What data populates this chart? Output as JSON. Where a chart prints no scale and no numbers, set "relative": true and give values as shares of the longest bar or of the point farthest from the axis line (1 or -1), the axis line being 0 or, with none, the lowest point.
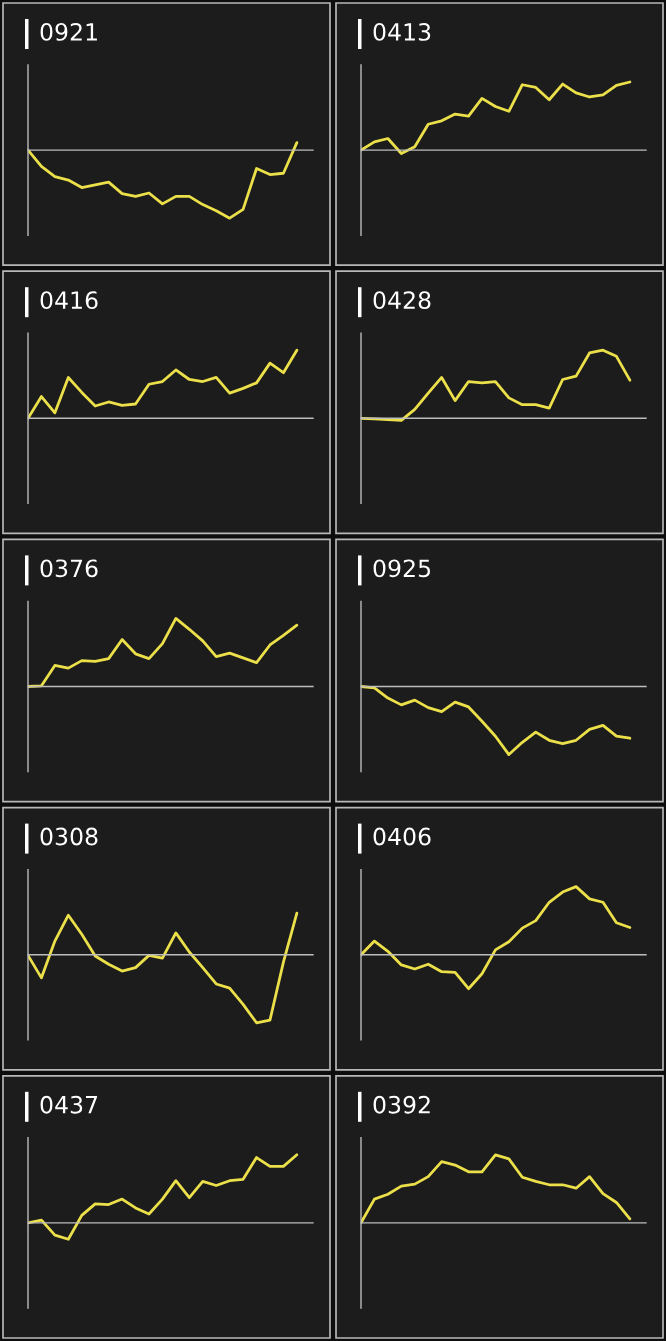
{
  "chart_data": [
    {
      "type": "line",
      "title": "0921",
      "relative": true,
      "categories": [
        null,
        null,
        null,
        null,
        null,
        null,
        null,
        null,
        null,
        null,
        null,
        null,
        null,
        null,
        null,
        null,
        null,
        null,
        null,
        null,
        null
      ],
      "series": [
        {
          "color": "#ece04a",
          "values": [
            0,
            -0.24,
            -0.39,
            -0.44,
            -0.55,
            -0.51,
            -0.47,
            -0.64,
            -0.68,
            -0.63,
            -0.79,
            -0.68,
            -0.68,
            -0.8,
            -0.89,
            -1,
            -0.87,
            -0.27,
            -0.36,
            -0.34,
            0.11
          ]
        }
      ]
    },
    {
      "type": "line",
      "title": "0413",
      "relative": true,
      "categories": [
        null,
        null,
        null,
        null,
        null,
        null,
        null,
        null,
        null,
        null,
        null,
        null,
        null,
        null,
        null,
        null,
        null,
        null,
        null,
        null,
        null
      ],
      "series": [
        {
          "color": "#ece04a",
          "values": [
            0,
            0.12,
            0.17,
            -0.05,
            0.05,
            0.38,
            0.43,
            0.53,
            0.5,
            0.76,
            0.64,
            0.57,
            0.96,
            0.92,
            0.74,
            0.97,
            0.84,
            0.78,
            0.81,
            0.95,
            1
          ]
        }
      ]
    },
    {
      "type": "line",
      "title": "0416",
      "relative": true,
      "categories": [
        null,
        null,
        null,
        null,
        null,
        null,
        null,
        null,
        null,
        null,
        null,
        null,
        null,
        null,
        null,
        null,
        null,
        null,
        null,
        null,
        null
      ],
      "series": [
        {
          "color": "#ece04a",
          "values": [
            0,
            0.32,
            0.08,
            0.6,
            0.38,
            0.18,
            0.24,
            0.19,
            0.21,
            0.5,
            0.54,
            0.71,
            0.57,
            0.54,
            0.6,
            0.37,
            0.44,
            0.52,
            0.81,
            0.67,
            1
          ]
        }
      ]
    },
    {
      "type": "line",
      "title": "0428",
      "relative": true,
      "categories": [
        null,
        null,
        null,
        null,
        null,
        null,
        null,
        null,
        null,
        null,
        null,
        null,
        null,
        null,
        null,
        null,
        null,
        null,
        null,
        null,
        null
      ],
      "series": [
        {
          "color": "#ece04a",
          "values": [
            0,
            -0.01,
            -0.02,
            -0.03,
            0.13,
            0.37,
            0.6,
            0.26,
            0.54,
            0.52,
            0.54,
            0.3,
            0.2,
            0.2,
            0.15,
            0.57,
            0.62,
            0.96,
            1,
            0.91,
            0.56
          ]
        }
      ]
    },
    {
      "type": "line",
      "title": "0376",
      "relative": true,
      "categories": [
        null,
        null,
        null,
        null,
        null,
        null,
        null,
        null,
        null,
        null,
        null,
        null,
        null,
        null,
        null,
        null,
        null,
        null,
        null,
        null,
        null
      ],
      "series": [
        {
          "color": "#ece04a",
          "values": [
            0,
            0.01,
            0.31,
            0.27,
            0.38,
            0.37,
            0.41,
            0.69,
            0.48,
            0.41,
            0.63,
            1,
            0.84,
            0.67,
            0.44,
            0.49,
            0.42,
            0.35,
            0.61,
            0.75,
            0.9
          ]
        }
      ]
    },
    {
      "type": "line",
      "title": "0925",
      "relative": true,
      "categories": [
        null,
        null,
        null,
        null,
        null,
        null,
        null,
        null,
        null,
        null,
        null,
        null,
        null,
        null,
        null,
        null,
        null,
        null,
        null,
        null,
        null
      ],
      "series": [
        {
          "color": "#ece04a",
          "values": [
            0,
            -0.02,
            -0.17,
            -0.27,
            -0.2,
            -0.31,
            -0.37,
            -0.23,
            -0.3,
            -0.51,
            -0.73,
            -1,
            -0.82,
            -0.67,
            -0.79,
            -0.84,
            -0.79,
            -0.63,
            -0.57,
            -0.73,
            -0.76
          ]
        }
      ]
    },
    {
      "type": "line",
      "title": "0308",
      "relative": true,
      "categories": [
        null,
        null,
        null,
        null,
        null,
        null,
        null,
        null,
        null,
        null,
        null,
        null,
        null,
        null,
        null,
        null,
        null,
        null,
        null,
        null,
        null
      ],
      "series": [
        {
          "color": "#ece04a",
          "values": [
            -0.01,
            -0.34,
            0.2,
            0.58,
            0.3,
            -0.02,
            -0.14,
            -0.24,
            -0.19,
            -0.01,
            -0.05,
            0.32,
            0.04,
            -0.19,
            -0.43,
            -0.49,
            -0.73,
            -1,
            -0.96,
            -0.11,
            0.61
          ]
        }
      ]
    },
    {
      "type": "line",
      "title": "0406",
      "relative": true,
      "categories": [
        null,
        null,
        null,
        null,
        null,
        null,
        null,
        null,
        null,
        null,
        null,
        null,
        null,
        null,
        null,
        null,
        null,
        null,
        null,
        null,
        null
      ],
      "series": [
        {
          "color": "#ece04a",
          "values": [
            0,
            0.2,
            0.05,
            -0.15,
            -0.21,
            -0.14,
            -0.25,
            -0.26,
            -0.5,
            -0.28,
            0.07,
            0.19,
            0.39,
            0.5,
            0.77,
            0.92,
            1,
            0.82,
            0.77,
            0.47,
            0.4
          ]
        }
      ]
    },
    {
      "type": "line",
      "title": "0437",
      "relative": true,
      "categories": [
        null,
        null,
        null,
        null,
        null,
        null,
        null,
        null,
        null,
        null,
        null,
        null,
        null,
        null,
        null,
        null,
        null,
        null,
        null,
        null,
        null
      ],
      "series": [
        {
          "color": "#ece04a",
          "values": [
            0,
            0.04,
            -0.18,
            -0.24,
            0.11,
            0.28,
            0.27,
            0.35,
            0.22,
            0.13,
            0.35,
            0.62,
            0.37,
            0.61,
            0.55,
            0.62,
            0.64,
            0.96,
            0.83,
            0.83,
            1
          ]
        }
      ]
    },
    {
      "type": "line",
      "title": "0392",
      "relative": true,
      "categories": [
        null,
        null,
        null,
        null,
        null,
        null,
        null,
        null,
        null,
        null,
        null,
        null,
        null,
        null,
        null,
        null,
        null,
        null,
        null,
        null,
        null
      ],
      "series": [
        {
          "color": "#ece04a",
          "values": [
            0,
            0.35,
            0.42,
            0.54,
            0.57,
            0.68,
            0.9,
            0.85,
            0.75,
            0.75,
            1,
            0.94,
            0.67,
            0.61,
            0.56,
            0.56,
            0.51,
            0.68,
            0.43,
            0.3,
            0.06
          ]
        }
      ]
    }
  ]
}
